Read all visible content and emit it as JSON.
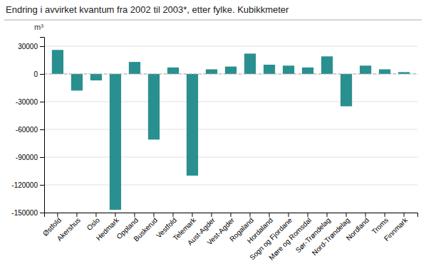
{
  "chart_data": {
    "type": "bar",
    "title": "Endring i avvirket kvantum fra 2002 til 2003*, etter fylke. Kubikkmeter",
    "ylabel": "m³",
    "categories": [
      "Østfold",
      "Akershus",
      "Oslo",
      "Hedmark",
      "Oppland",
      "Buskerud",
      "Vestfold",
      "Telemark",
      "Aust-Agder",
      "Vest-Agder",
      "Rogaland",
      "Hordaland",
      "Sogn og Fjordane",
      "Møre og Romsdal",
      "Sør-Trøndelag",
      "Nord-Trøndelag",
      "Nordland",
      "Troms",
      "Finnmark"
    ],
    "values": [
      26000,
      -18000,
      -7000,
      -147000,
      13000,
      -71000,
      7000,
      -110000,
      5000,
      8000,
      22000,
      10000,
      9000,
      7000,
      19000,
      -35000,
      9000,
      5000,
      2000
    ],
    "color": "#2a8f8f",
    "ylim": [
      -150000,
      40000
    ],
    "yticks": [
      -150000,
      -120000,
      -90000,
      -60000,
      -30000,
      0,
      30000
    ],
    "grid": true
  }
}
